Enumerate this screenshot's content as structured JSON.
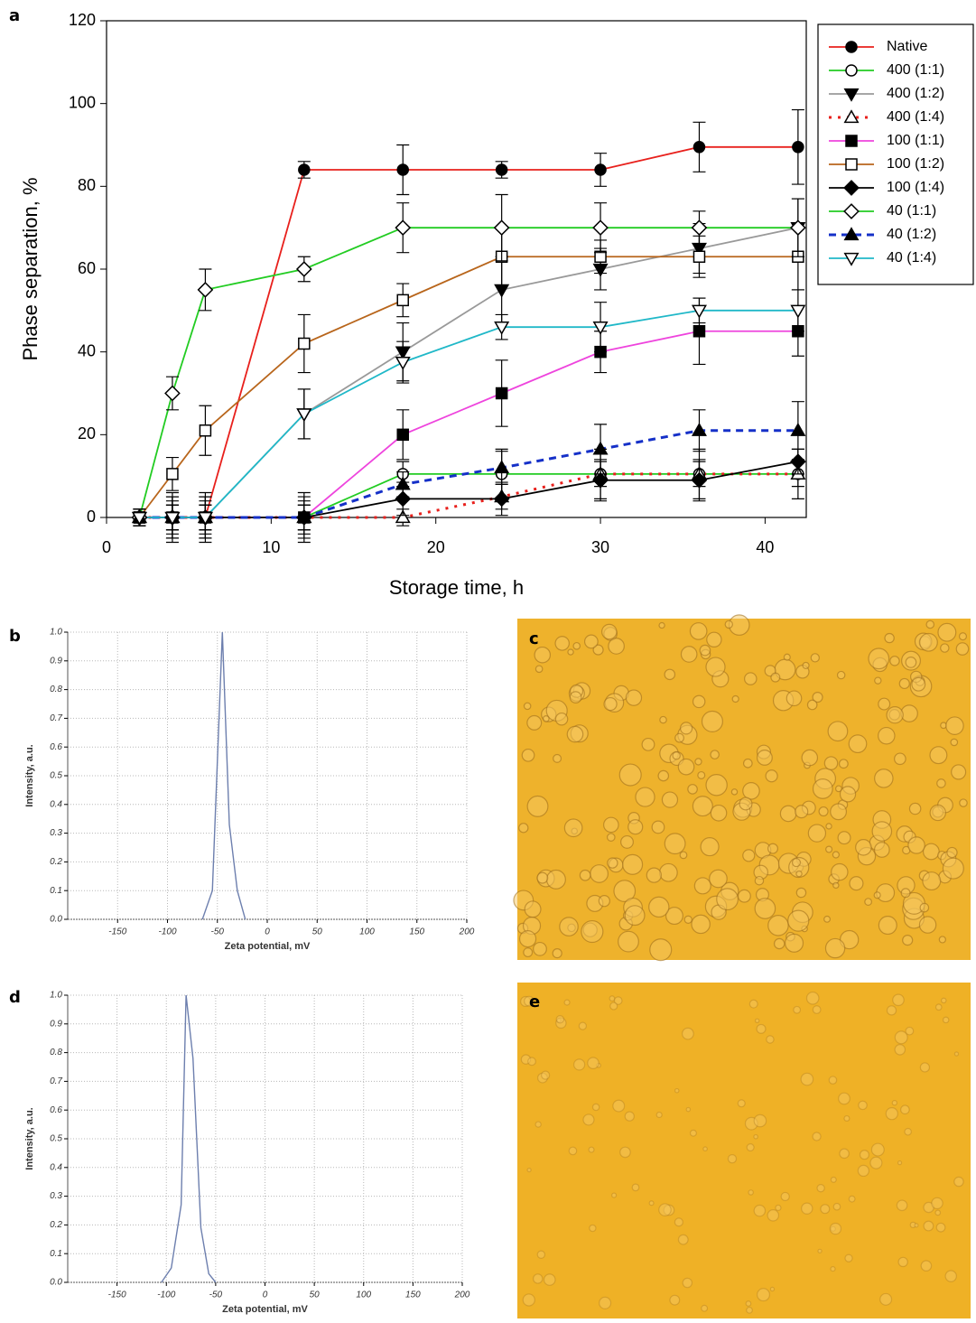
{
  "chart_data": [
    {
      "type": "line",
      "panel": "a",
      "x_label": "Storage time, h",
      "y_label": "Phase separation, %",
      "x": [
        2,
        4,
        6,
        12,
        18,
        24,
        30,
        36,
        42
      ],
      "xlim": [
        0,
        42.5
      ],
      "ylim": [
        0,
        120
      ],
      "xticks": [
        0,
        10,
        20,
        30,
        40
      ],
      "yticks": [
        0,
        20,
        40,
        60,
        80,
        100,
        120
      ],
      "grid": false,
      "legend": "outside-right",
      "series": [
        {
          "name": "Native",
          "color": "#e8201c",
          "marker": "circle",
          "filled": true,
          "dash": "solid",
          "values": [
            0,
            0,
            0,
            84,
            84,
            84,
            84,
            89.5,
            89.5
          ],
          "errors": [
            2,
            3,
            3,
            2,
            6,
            2,
            4,
            6,
            9
          ]
        },
        {
          "name": "400 (1:1)",
          "color": "#22cc22",
          "marker": "circle",
          "filled": false,
          "dash": "solid",
          "values": [
            0,
            0,
            0,
            0,
            10.5,
            10.5,
            10.5,
            10.5,
            10.5
          ],
          "errors": [
            2,
            6,
            6,
            6,
            3,
            6,
            6,
            6,
            6
          ]
        },
        {
          "name": "400 (1:2)",
          "color": "#999999",
          "marker": "triangle-down",
          "filled": true,
          "dash": "solid",
          "values": [
            0,
            0,
            0,
            25,
            40,
            55,
            60,
            65,
            70
          ],
          "errors": [
            2,
            5,
            5,
            6,
            7,
            8,
            5,
            6,
            7
          ]
        },
        {
          "name": "400 (1:4)",
          "color": "#e8201c",
          "marker": "triangle-up",
          "filled": false,
          "dash": "dotted",
          "values": [
            0,
            0,
            0,
            0,
            0,
            5,
            10.5,
            10.5,
            10.5
          ],
          "errors": [
            2,
            3,
            3,
            3,
            2,
            3,
            3,
            3,
            3
          ]
        },
        {
          "name": "100 (1:1)",
          "color": "#ee44dd",
          "marker": "square",
          "filled": true,
          "dash": "solid",
          "values": [
            0,
            0,
            0,
            0,
            20,
            30,
            40,
            45,
            45
          ],
          "errors": [
            2,
            5,
            5,
            5,
            6,
            8,
            5,
            8,
            6
          ]
        },
        {
          "name": "100 (1:2)",
          "color": "#b8651b",
          "marker": "square",
          "filled": false,
          "dash": "solid",
          "values": [
            0,
            10.5,
            21,
            42,
            52.5,
            63,
            63,
            63,
            63
          ],
          "errors": [
            2,
            4,
            6,
            7,
            4,
            7,
            4,
            5,
            8
          ]
        },
        {
          "name": "100 (1:4)",
          "color": "#000000",
          "marker": "diamond",
          "filled": true,
          "dash": "solid",
          "values": [
            0,
            0,
            0,
            0,
            4.5,
            4.5,
            9,
            9,
            13.5
          ],
          "errors": [
            2,
            4,
            4,
            4,
            4,
            4,
            5,
            5,
            3
          ]
        },
        {
          "name": "40 (1:1)",
          "color": "#22cc22",
          "marker": "diamond",
          "filled": false,
          "dash": "solid",
          "values": [
            0,
            30,
            55,
            60,
            70,
            70,
            70,
            70,
            70
          ],
          "errors": [
            2,
            4,
            5,
            3,
            6,
            8,
            6,
            4,
            7
          ]
        },
        {
          "name": "40 (1:2)",
          "color": "#1530c8",
          "marker": "triangle-up",
          "filled": true,
          "dash": "dashed",
          "values": [
            0,
            0,
            0,
            0,
            8,
            12,
            16.5,
            21,
            21
          ],
          "errors": [
            2,
            3,
            3,
            3,
            3,
            4,
            6,
            5,
            7
          ]
        },
        {
          "name": "40 (1:4)",
          "color": "#20b8c8",
          "marker": "triangle-down",
          "filled": false,
          "dash": "solid",
          "values": [
            0,
            0,
            0,
            25,
            37.5,
            46,
            46,
            50,
            50
          ],
          "errors": [
            2,
            5,
            5,
            6,
            5,
            3,
            6,
            3,
            5
          ]
        }
      ]
    },
    {
      "type": "line",
      "panel": "b",
      "x_label": "Zeta potential, mV",
      "y_label": "Intensity, a.u.",
      "x": [
        -65,
        -55,
        -45,
        -38,
        -30,
        -22
      ],
      "xlim": [
        -200,
        200
      ],
      "xticks": [
        -150,
        -100,
        -50,
        0,
        50,
        100,
        150,
        200
      ],
      "ylim": [
        0,
        1
      ],
      "yticks": [
        {
          "value": 0,
          "label": "0.0"
        },
        0.1,
        0.2,
        0.3,
        0.4,
        0.5,
        0.6,
        0.7,
        0.8,
        0.9,
        {
          "value": 1,
          "label": "1.0"
        }
      ],
      "grid": true,
      "color": "#6d7fae",
      "values": [
        0,
        0.1,
        1,
        0.33,
        0.1,
        0
      ]
    },
    {
      "type": "line",
      "panel": "d",
      "x_label": "Zeta potential, mV",
      "y_label": "Intensity, a.u.",
      "x": [
        -105,
        -95,
        -85,
        -80,
        -73,
        -65,
        -57,
        -50
      ],
      "xlim": [
        -200,
        200
      ],
      "xticks": [
        -150,
        -100,
        -50,
        0,
        50,
        100,
        150,
        200
      ],
      "ylim": [
        0,
        1
      ],
      "yticks": [
        {
          "value": 0,
          "label": "0.0"
        },
        0.1,
        0.2,
        0.3,
        0.4,
        0.5,
        0.6,
        0.7,
        0.8,
        0.9,
        {
          "value": 1,
          "label": "1.0"
        }
      ],
      "grid": true,
      "color": "#6d7fae",
      "values": [
        0,
        0.05,
        0.27,
        1,
        0.78,
        0.19,
        0.03,
        0
      ]
    }
  ],
  "images": [
    {
      "panel": "c"
    },
    {
      "panel": "e"
    }
  ]
}
